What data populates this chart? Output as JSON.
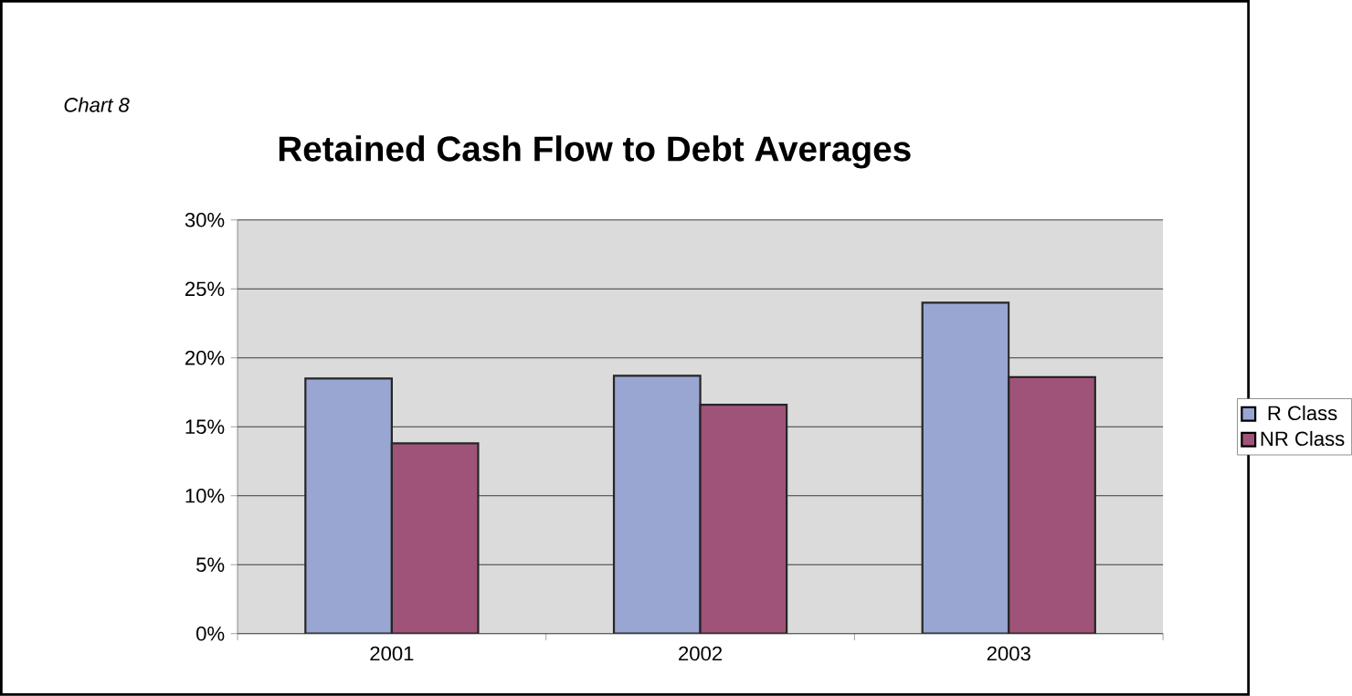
{
  "chart_data": {
    "type": "bar",
    "title": "Retained Cash Flow to Debt Averages",
    "annotations": [
      "Chart 8"
    ],
    "categories": [
      "2001",
      "2002",
      "2003"
    ],
    "series": [
      {
        "name": "R Class",
        "color": "#99a6d2",
        "values": [
          18.5,
          18.7,
          24.0
        ]
      },
      {
        "name": "NR Class",
        "color": "#a05378",
        "values": [
          13.8,
          16.6,
          18.6
        ]
      }
    ],
    "ylim": [
      0,
      30
    ],
    "yticks": [
      {
        "value": 0,
        "label": "0%"
      },
      {
        "value": 5,
        "label": "5%"
      },
      {
        "value": 10,
        "label": "10%"
      },
      {
        "value": 15,
        "label": "15%"
      },
      {
        "value": 20,
        "label": "20%"
      },
      {
        "value": 25,
        "label": "25%"
      },
      {
        "value": 30,
        "label": "30%"
      }
    ],
    "grid": "y",
    "legend": "right"
  }
}
